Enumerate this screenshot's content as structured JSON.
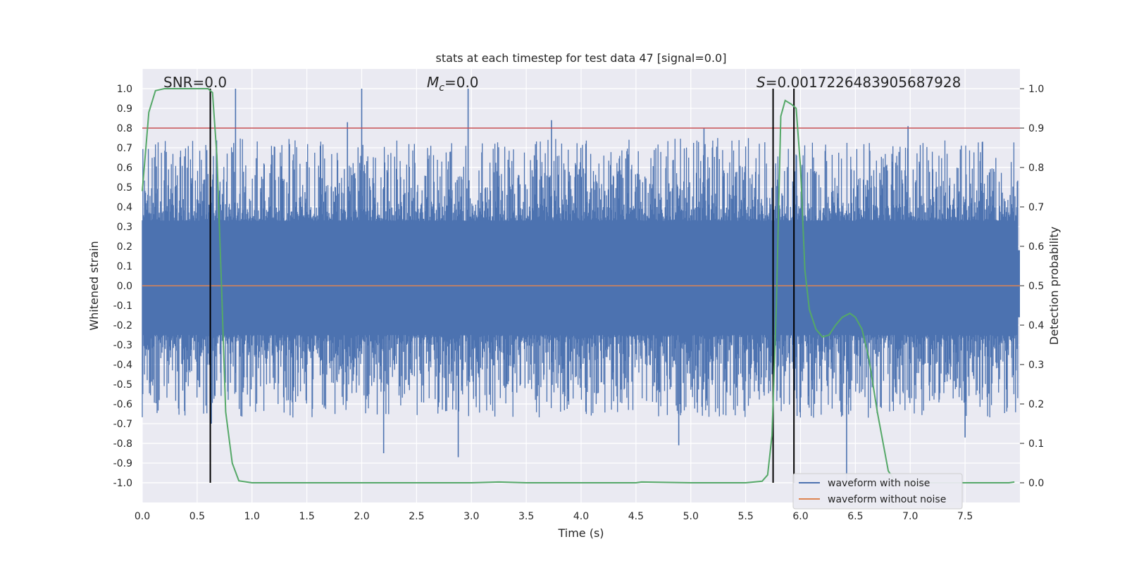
{
  "chart_data": {
    "type": "line",
    "title": "stats at each timestep for test data 47 [signal=0.0]",
    "xlabel": "Time (s)",
    "ylabel": "Whitened strain",
    "y2label": "Detection probability",
    "xlim": [
      0.0,
      8.0
    ],
    "ylim": [
      -1.1,
      1.1
    ],
    "y2lim": [
      -0.05,
      1.05
    ],
    "x_ticks": [
      0.0,
      0.5,
      1.0,
      1.5,
      2.0,
      2.5,
      3.0,
      3.5,
      4.0,
      4.5,
      5.0,
      5.5,
      6.0,
      6.5,
      7.0,
      7.5
    ],
    "x_tick_labels": [
      "0.0",
      "0.5",
      "1.0",
      "1.5",
      "2.0",
      "2.5",
      "3.0",
      "3.5",
      "4.0",
      "4.5",
      "5.0",
      "5.5",
      "6.0",
      "6.5",
      "7.0",
      "7.5"
    ],
    "y_ticks": [
      1.0,
      0.9,
      0.8,
      0.7,
      0.6,
      0.5,
      0.4,
      0.3,
      0.2,
      0.1,
      0.0,
      -0.1,
      -0.2,
      -0.3,
      -0.4,
      -0.5,
      -0.6,
      -0.7,
      -0.8,
      -0.9,
      -1.0
    ],
    "y_tick_labels": [
      "1.0",
      "0.9",
      "0.8",
      "0.7",
      "0.6",
      "0.5",
      "0.4",
      "0.3",
      "0.2",
      "0.1",
      "0.0",
      "-0.1",
      "-0.2",
      "-0.3",
      "-0.4",
      "-0.5",
      "-0.6",
      "-0.7",
      "-0.8",
      "-0.9",
      "-1.0"
    ],
    "y2_ticks": [
      1.0,
      0.9,
      0.8,
      0.7,
      0.6,
      0.5,
      0.4,
      0.3,
      0.2,
      0.1,
      0.0
    ],
    "y2_tick_labels": [
      "1.0",
      "0.9",
      "0.8",
      "0.7",
      "0.6",
      "0.5",
      "0.4",
      "0.3",
      "0.2",
      "0.1",
      "0.0"
    ],
    "grid": true,
    "legend_position": "bottom-right",
    "annotations": {
      "snr_label": "SNR=0.0",
      "mc_symbol": "M",
      "mc_subscript": "c",
      "mc_value": "=0.0",
      "s_symbol": "S",
      "s_value": "=0.0017226483905687928"
    },
    "threshold_line": {
      "y2": 0.9,
      "color": "#c44e52"
    },
    "event_lines_x": [
      0.62,
      5.75,
      5.94
    ],
    "series": [
      {
        "name": "waveform with noise",
        "color": "#4c72b0",
        "noise_envelope": "dense whitened noise roughly in [-0.6, 0.7], peaks near 1.0 at t=0.85, 2.0, 2.97",
        "peak_spikes": [
          [
            0.85,
            1.0
          ],
          [
            2.0,
            1.0
          ],
          [
            2.97,
            1.0
          ],
          [
            1.87,
            0.83
          ],
          [
            3.73,
            0.84
          ],
          [
            5.12,
            0.8
          ],
          [
            6.98,
            0.81
          ],
          [
            0.63,
            -0.7
          ],
          [
            2.2,
            -0.85
          ],
          [
            2.88,
            -0.87
          ],
          [
            4.89,
            -0.81
          ],
          [
            6.42,
            -1.0
          ],
          [
            7.5,
            -0.77
          ]
        ]
      },
      {
        "name": "waveform without noise",
        "color": "#dd8452",
        "value": 0.0
      },
      {
        "name": "detection probability",
        "color": "#55a868",
        "axis": "y2",
        "x": [
          0.0,
          0.06,
          0.12,
          0.2,
          0.3,
          0.4,
          0.5,
          0.6,
          0.64,
          0.68,
          0.72,
          0.76,
          0.82,
          0.88,
          1.0,
          1.5,
          2.0,
          2.5,
          3.0,
          3.25,
          3.5,
          4.0,
          4.5,
          4.55,
          5.0,
          5.5,
          5.65,
          5.7,
          5.74,
          5.78,
          5.82,
          5.86,
          5.92,
          5.96,
          6.0,
          6.04,
          6.08,
          6.14,
          6.2,
          6.26,
          6.32,
          6.38,
          6.45,
          6.5,
          6.56,
          6.62,
          6.7,
          6.8,
          6.86,
          6.9,
          7.0,
          7.5,
          7.9,
          7.95
        ],
        "y": [
          0.74,
          0.94,
          0.995,
          1.0,
          1.0,
          1.0,
          1.0,
          1.0,
          0.99,
          0.83,
          0.52,
          0.18,
          0.05,
          0.005,
          0.0,
          0.0,
          0.0,
          0.0,
          0.0,
          0.002,
          0.0,
          0.0,
          0.0,
          0.002,
          0.0,
          0.0,
          0.004,
          0.02,
          0.12,
          0.45,
          0.93,
          0.97,
          0.96,
          0.95,
          0.8,
          0.54,
          0.44,
          0.39,
          0.37,
          0.375,
          0.4,
          0.42,
          0.43,
          0.42,
          0.39,
          0.32,
          0.18,
          0.03,
          0.005,
          0.0,
          0.0,
          0.0,
          0.0,
          0.002
        ]
      }
    ]
  }
}
